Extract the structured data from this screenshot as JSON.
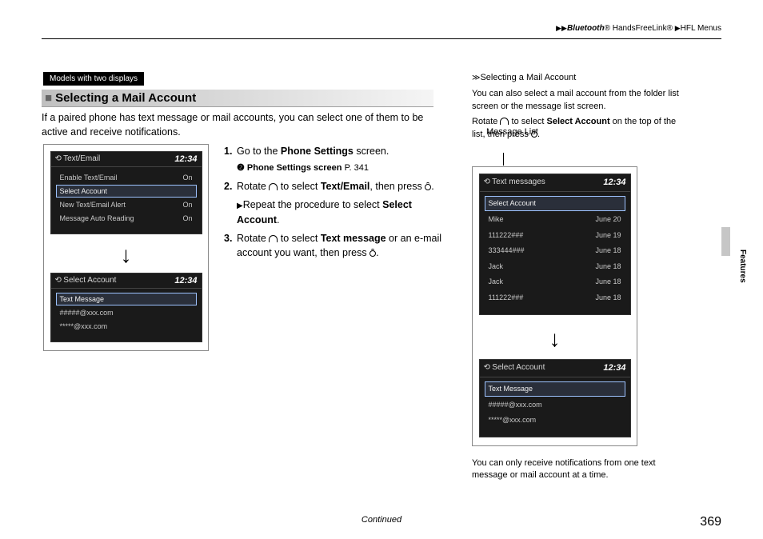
{
  "colors": {
    "page_bg": "#ffffff",
    "panel_bg": "#1a1a1a",
    "panel_fg": "#d8d8d8",
    "sel_border": "#9ec3ff",
    "band_grad_from": "#c0c0c0",
    "band_grad_to": "#f5f5f5",
    "side_tab": "#c6c6c6"
  },
  "header": {
    "bluetooth": "Bluetooth",
    "reg": "®",
    "hfl1": " HandsFreeLink® ",
    "hfl2": "HFL Menus"
  },
  "badge": "Models with two displays",
  "section_title": "Selecting a Mail Account",
  "intro": "If a paired phone has text message or mail accounts, you can select one of them to be active and receive notifications.",
  "steps": {
    "s1a": "Go to the ",
    "s1b": "Phone Settings",
    "s1c": " screen.",
    "xref": "Phone Settings screen",
    "xref_page": "P. 341",
    "s2a": "Rotate ",
    "s2b": " to select ",
    "s2c": "Text/Email",
    "s2d": ", then press ",
    "s2e": ".",
    "s2sub_a": "Repeat the procedure to select ",
    "s2sub_b": "Select Account",
    "s2sub_c": ".",
    "s3a": "Rotate ",
    "s3b": " to select ",
    "s3c": "Text message",
    "s3d": " or an e-mail account you want, then press ",
    "s3e": "."
  },
  "left_panel1": {
    "title": "Text/Email",
    "clock": "12:34",
    "rows": [
      {
        "label": "Enable Text/Email",
        "val": "On",
        "sel": false
      },
      {
        "label": "Select Account",
        "val": "",
        "sel": true
      },
      {
        "label": "New Text/Email Alert",
        "val": "On",
        "sel": false
      },
      {
        "label": "Message Auto Reading",
        "val": "On",
        "sel": false
      }
    ]
  },
  "left_panel2": {
    "title": "Select Account",
    "clock": "12:34",
    "rows": [
      {
        "label": "Text Message",
        "val": "",
        "sel": true
      },
      {
        "label": "#####@xxx.com",
        "val": "",
        "sel": false
      },
      {
        "label": "*****@xxx.com",
        "val": "",
        "sel": false
      }
    ]
  },
  "rhs": {
    "heading": "Selecting a Mail Account",
    "p1": "You can also select a mail account from the folder list screen or the message list screen.",
    "p2a": "Rotate ",
    "p2b": " to select ",
    "p2c": "Select Account",
    "p2d": " on the top of the list, then press ",
    "p2e": ".",
    "msg_list_label": "Message List",
    "note": "You can only receive notifications from one text message or mail account at a time."
  },
  "rhs_panel1": {
    "title": "Text messages",
    "clock": "12:34",
    "rows": [
      {
        "label": "Select Account",
        "val": "",
        "sel": true
      },
      {
        "label": "Mike",
        "val": "June 20",
        "sel": false
      },
      {
        "label": "111222###",
        "val": "June 19",
        "sel": false
      },
      {
        "label": "333444###",
        "val": "June 18",
        "sel": false
      },
      {
        "label": "Jack",
        "val": "June 18",
        "sel": false
      },
      {
        "label": "Jack",
        "val": "June 18",
        "sel": false
      },
      {
        "label": "111222###",
        "val": "June 18",
        "sel": false
      }
    ]
  },
  "rhs_panel2": {
    "title": "Select Account",
    "clock": "12:34",
    "rows": [
      {
        "label": "Text Message",
        "val": "",
        "sel": true
      },
      {
        "label": "#####@xxx.com",
        "val": "",
        "sel": false
      },
      {
        "label": "*****@xxx.com",
        "val": "",
        "sel": false
      }
    ]
  },
  "side_label": "Features",
  "footer": "Continued",
  "page_num": "369"
}
